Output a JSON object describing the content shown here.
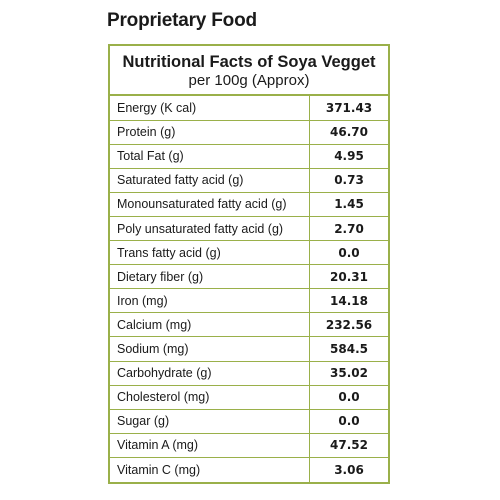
{
  "heading": "Proprietary Food",
  "facts": {
    "title": "Nutritional Facts of Soya Vegget",
    "subtitle": "per 100g (Approx)",
    "rows": [
      {
        "nutrient": "Energy (K cal)",
        "value": "371.43"
      },
      {
        "nutrient": "Protein (g)",
        "value": "46.70"
      },
      {
        "nutrient": "Total Fat (g)",
        "value": "4.95"
      },
      {
        "nutrient": "Saturated fatty acid (g)",
        "value": "0.73"
      },
      {
        "nutrient": "Monounsaturated fatty acid (g)",
        "value": "1.45"
      },
      {
        "nutrient": "Poly unsaturated fatty acid (g)",
        "value": "2.70"
      },
      {
        "nutrient": "Trans fatty acid (g)",
        "value": "0.0"
      },
      {
        "nutrient": "Dietary fiber (g)",
        "value": "20.31"
      },
      {
        "nutrient": "Iron (mg)",
        "value": "14.18"
      },
      {
        "nutrient": "Calcium (mg)",
        "value": "232.56"
      },
      {
        "nutrient": "Sodium (mg)",
        "value": "584.5"
      },
      {
        "nutrient": "Carbohydrate (g)",
        "value": "35.02"
      },
      {
        "nutrient": "Cholesterol (mg)",
        "value": "0.0"
      },
      {
        "nutrient": "Sugar (g)",
        "value": "0.0"
      },
      {
        "nutrient": "Vitamin A (mg)",
        "value": "47.52"
      },
      {
        "nutrient": "Vitamin C (mg)",
        "value": "3.06"
      }
    ]
  },
  "colors": {
    "border": "#9ab04a",
    "text": "#1a1a1a",
    "background": "#ffffff"
  }
}
